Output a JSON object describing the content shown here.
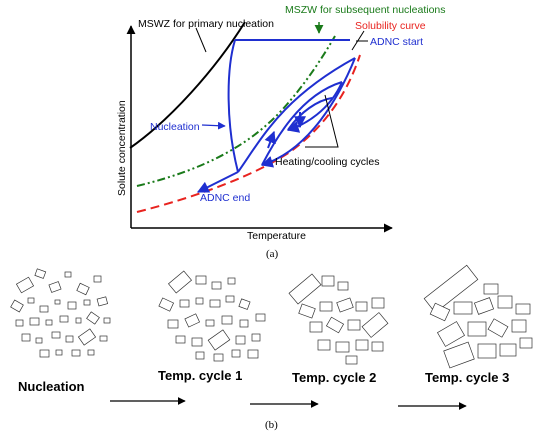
{
  "panel_a": {
    "labels": {
      "mswz": "MSWZ for primary nucleation",
      "mszw": "MSZW for subsequent nucleations",
      "solubility": "Solubility curve",
      "adnc_start": "ADNC start",
      "nucleation": "Nucleation",
      "heating_cooling": "Heating/cooling cycles",
      "adnc_end": "ADNC end"
    },
    "ylabel": "Solute concentration",
    "xlabel": "Temperature",
    "caption": "(a)"
  },
  "panel_b": {
    "stages": [
      "Nucleation",
      "Temp. cycle 1",
      "Temp. cycle 2",
      "Temp. cycle 3"
    ],
    "caption": "(b)"
  },
  "colors": {
    "mswz": "#000000",
    "mszw": "#1a7a1a",
    "solubility": "#e8231f",
    "trajectory": "#1f2fd0"
  }
}
